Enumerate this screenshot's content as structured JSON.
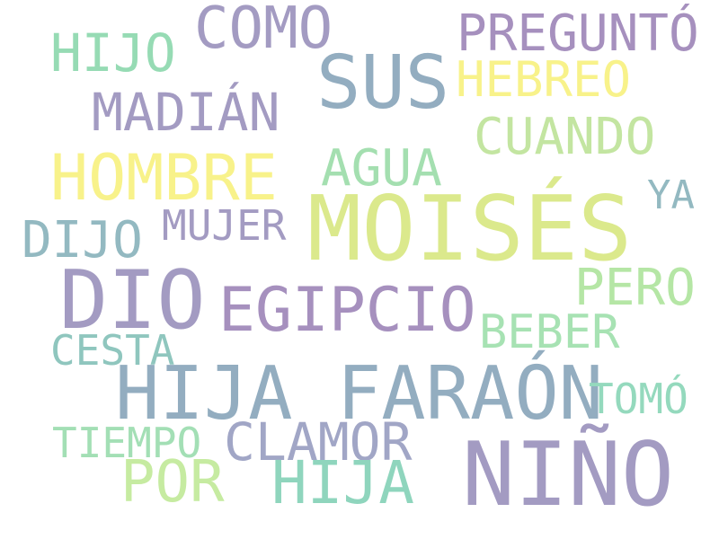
{
  "words": [
    {
      "text": "MOISÉS",
      "color": "#dbe98c"
    },
    {
      "text": "NIÑO",
      "color": "#a39bc2"
    },
    {
      "text": "DIO",
      "color": "#a39bc2"
    },
    {
      "text": "HIJA FARAÓN",
      "color": "#93adc0"
    },
    {
      "text": "SUS",
      "color": "#93adc0"
    },
    {
      "text": "HOMBRE",
      "color": "#f8f28a"
    },
    {
      "text": "EGIPCIO",
      "color": "#a690be"
    },
    {
      "text": "COMO",
      "color": "#a39bc2"
    },
    {
      "text": "PREGUNTÓ",
      "color": "#a690be"
    },
    {
      "text": "HIJO",
      "color": "#96dbb4"
    },
    {
      "text": "HEBREO",
      "color": "#f8f28a"
    },
    {
      "text": "MADIÁN",
      "color": "#a39bc2"
    },
    {
      "text": "CUANDO",
      "color": "#c3e5a1"
    },
    {
      "text": "AGUA",
      "color": "#a4dfb0"
    },
    {
      "text": "YA",
      "color": "#93b9c1"
    },
    {
      "text": "DIJO",
      "color": "#93b9c1"
    },
    {
      "text": "MUJER",
      "color": "#a39bc2"
    },
    {
      "text": "PERO",
      "color": "#b5e6a5"
    },
    {
      "text": "BEBER",
      "color": "#a7e2b3"
    },
    {
      "text": "CESTA",
      "color": "#8fc6be"
    },
    {
      "text": "TOMÓ",
      "color": "#94d9bd"
    },
    {
      "text": "TIEMPO",
      "color": "#a3dfb5"
    },
    {
      "text": "CLAMOR",
      "color": "#a1a6c6"
    },
    {
      "text": "POR",
      "color": "#c6eba1"
    },
    {
      "text": "HIJA",
      "color": "#8fd5bd"
    }
  ]
}
